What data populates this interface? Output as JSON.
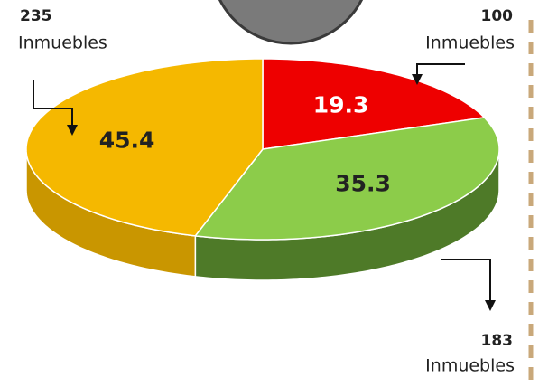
{
  "chart_data": {
    "type": "pie",
    "values": [
      19.3,
      35.3,
      45.4
    ],
    "colors": [
      "#ee0000",
      "#8ccc4a",
      "#f5b800"
    ],
    "shade_colors": [
      "#a00000",
      "#4e7a28",
      "#c99600"
    ],
    "counts": [
      100,
      183,
      235
    ],
    "count_unit": "Inmuebles"
  }
}
